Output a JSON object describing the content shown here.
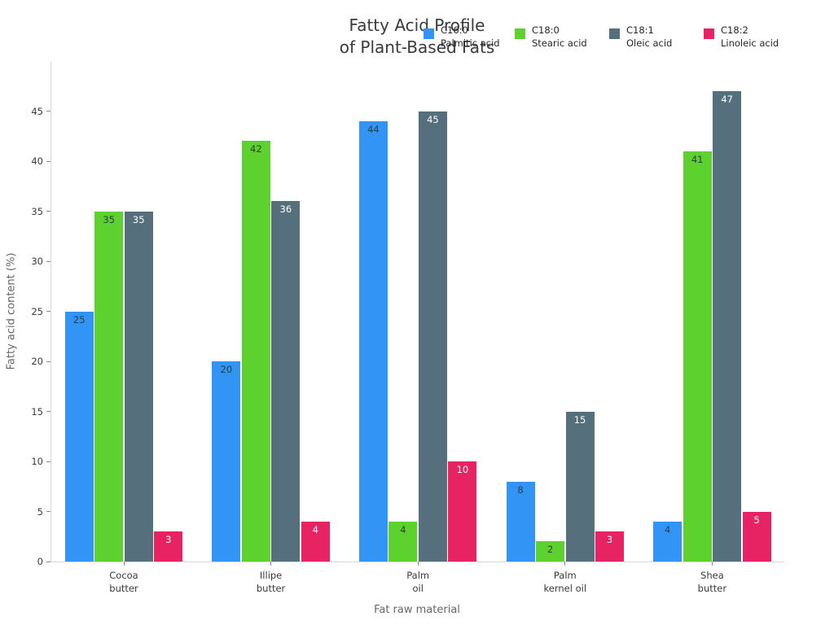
{
  "title": {
    "line1": "Fatty Acid Profile",
    "line2": "of Plant-Based Fats"
  },
  "legend": [
    {
      "code": "C16:0",
      "name": "Palmitic acid",
      "color": "#3295f5"
    },
    {
      "code": "C18:0",
      "name": "Stearic acid",
      "color": "#5dd12e"
    },
    {
      "code": "C18:1",
      "name": "Oleic acid",
      "color": "#55707c"
    },
    {
      "code": "C18:2",
      "name": "Linoleic acid",
      "color": "#e82363"
    }
  ],
  "chart_data": {
    "type": "bar",
    "title": "Fatty Acid Profile of Plant-Based Fats",
    "xlabel": "Fat raw material",
    "ylabel": "Fatty acid content (%)",
    "categories": [
      "Cocoa\nbutter",
      "Illipe\nbutter",
      "Palm\noil",
      "Palm\nkernel oil",
      "Shea\nbutter"
    ],
    "series": [
      {
        "name": "C16:0 Palmitic acid",
        "color": "#3295f5",
        "label_color": "#2e3d44",
        "values": [
          25,
          20,
          44,
          8,
          4
        ]
      },
      {
        "name": "C18:0 Stearic acid",
        "color": "#5dd12e",
        "label_color": "#2e3d44",
        "values": [
          35,
          42,
          4,
          2,
          41
        ]
      },
      {
        "name": "C18:1 Oleic acid",
        "color": "#55707c",
        "label_color": "#ffffff",
        "values": [
          35,
          36,
          45,
          15,
          47
        ]
      },
      {
        "name": "C18:2 Linoleic acid",
        "color": "#e82363",
        "label_color": "#ffffff",
        "values": [
          3,
          4,
          10,
          3,
          5
        ]
      }
    ],
    "ylim": [
      0,
      50
    ],
    "yticks": [
      0,
      5,
      10,
      15,
      20,
      25,
      30,
      35,
      40,
      45
    ],
    "grid": false,
    "bar_labels": true,
    "legend_position": "top-right"
  }
}
